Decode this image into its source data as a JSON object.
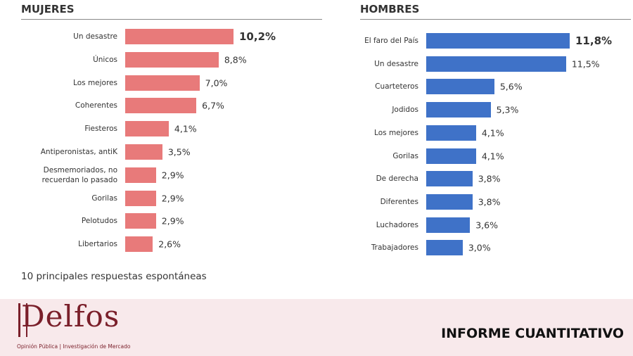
{
  "chart_data": [
    {
      "type": "hbar",
      "title": "MUJERES",
      "color": "#e87a7a",
      "categories": [
        "Un desastre",
        "Únicos",
        "Los mejores",
        "Coherentes",
        "Fiesteros",
        "Antiperonistas, antiK",
        "Desmemoriados, no recuerdan lo pasado",
        "Gorilas",
        "Pelotudos",
        "Libertarios"
      ],
      "values": [
        10.2,
        8.8,
        7.0,
        6.7,
        4.1,
        3.5,
        2.9,
        2.9,
        2.9,
        2.6
      ],
      "value_labels": [
        "10,2%",
        "8,8%",
        "7,0%",
        "6,7%",
        "4,1%",
        "3,5%",
        "2,9%",
        "2,9%",
        "2,9%",
        "2,6%"
      ]
    },
    {
      "type": "hbar",
      "title": "HOMBRES",
      "color": "#3f72c8",
      "categories": [
        "El faro del País",
        "Un desastre",
        "Cuarteteros",
        "Jodidos",
        "Los mejores",
        "Gorilas",
        "De derecha",
        "Diferentes",
        "Luchadores",
        "Trabajadores"
      ],
      "values": [
        11.8,
        11.5,
        5.6,
        5.3,
        4.1,
        4.1,
        3.8,
        3.8,
        3.6,
        3.0
      ],
      "value_labels": [
        "11,8%",
        "11,5%",
        "5,6%",
        "5,3%",
        "4,1%",
        "4,1%",
        "3,8%",
        "3,8%",
        "3,6%",
        "3,0%"
      ]
    }
  ],
  "note": "10 principales respuestas espontáneas",
  "brand": "Delfos",
  "brand_tagline": "Opinión Pública | Investigación de Mercado",
  "report_label": "INFORME CUANTITATIVO"
}
